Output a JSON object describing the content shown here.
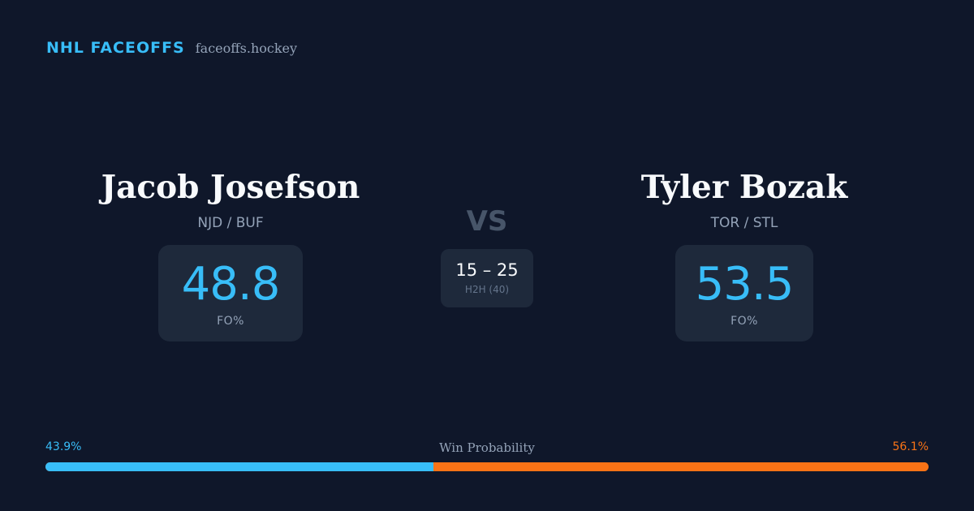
{
  "brand": {
    "name": "NHL FACEOFFS",
    "site": "faceoffs.hockey"
  },
  "player_left": {
    "name": "Jacob Josefson",
    "teams": "NJD / BUF",
    "fo_value": "48.8",
    "fo_label": "FO%"
  },
  "player_right": {
    "name": "Tyler Bozak",
    "teams": "TOR / STL",
    "fo_value": "53.5",
    "fo_label": "FO%"
  },
  "matchup": {
    "vs_label": "VS",
    "h2h_score": "15 – 25",
    "h2h_label": "H2H (40)"
  },
  "win_probability": {
    "title": "Win Probability",
    "left_text": "43.9%",
    "right_text": "56.1%",
    "left_fraction": 0.439,
    "right_fraction": 0.561,
    "left_color": "#38bdf8",
    "right_color": "#f97316"
  },
  "colors": {
    "background": "#0f172a",
    "card": "#1e293b",
    "accent": "#38bdf8",
    "opponent": "#f97316"
  }
}
